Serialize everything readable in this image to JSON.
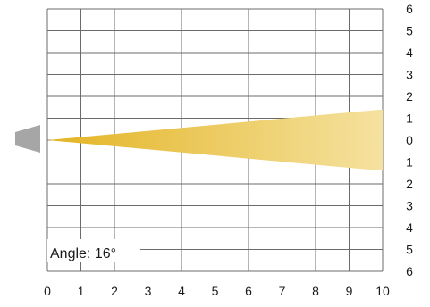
{
  "chart_data": {
    "type": "beam-angle-diagram",
    "beam_angle_label": "Angle: 16°",
    "beam_angle_deg": 16,
    "x_range": [
      0,
      10
    ],
    "y_range": [
      -6,
      6
    ],
    "x_ticks": [
      "0",
      "1",
      "2",
      "3",
      "4",
      "5",
      "6",
      "7",
      "8",
      "9",
      "10"
    ],
    "y_ticks": [
      "6",
      "5",
      "4",
      "3",
      "2",
      "1",
      "0",
      "1",
      "2",
      "3",
      "4",
      "5",
      "6"
    ],
    "beam_colors": {
      "start": "#e3b424",
      "end": "#f5e2a0"
    },
    "source_color": "#a6a6a6",
    "grid_on": true
  }
}
